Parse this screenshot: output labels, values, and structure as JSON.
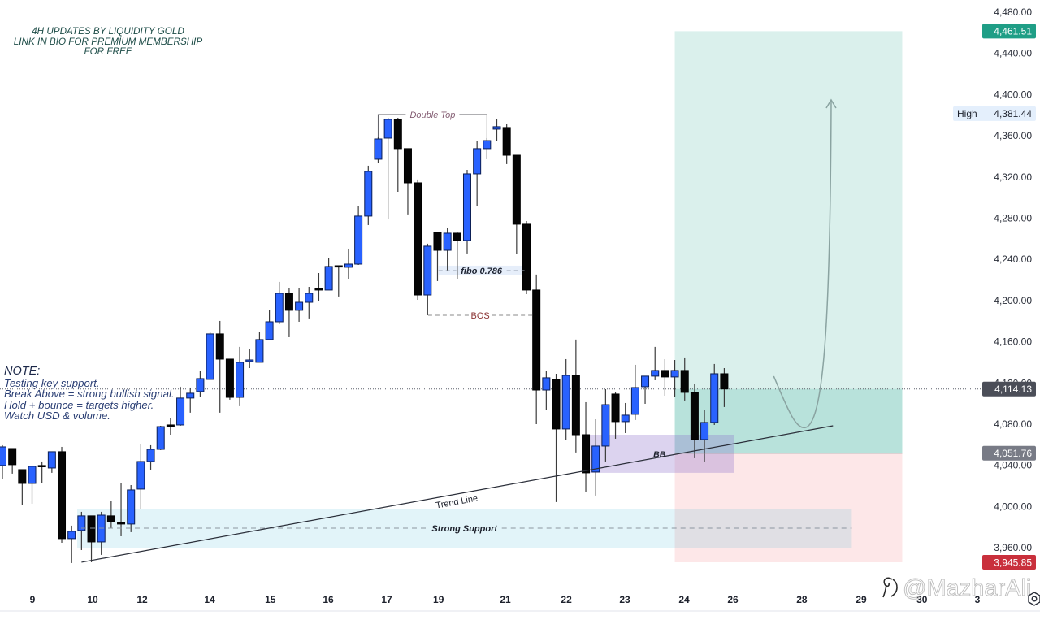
{
  "header": {
    "lines": [
      "4H UPDATES BY LIQUIDITY GOLD",
      "LINK IN BIO FOR PREMIUM MEMBERSHIP",
      "FOR FREE"
    ]
  },
  "note": {
    "title": "NOTE:",
    "lines": [
      "Testing key support.",
      "Break Above = strong bullish signal.",
      "Hold + bounce = targets higher.",
      "Watch USD & volume."
    ]
  },
  "price_axis": {
    "high_label": "High"
  },
  "watermark": {
    "text": "@MazharAli",
    "icon": "watermark-logo-icon"
  },
  "settings": {
    "icon": "settings-hexagon-icon"
  },
  "colors": {
    "bull": "#2962ff",
    "bull_border": "#0b1e55",
    "bear": "#050505",
    "wick": "#3b3b3b",
    "target_zone": "#089981",
    "stop_zone": "#f23645",
    "support_zone": "#0da3cd",
    "bb_zone": "#8a6cca",
    "target_badge": "#1f9e86",
    "current_badge": "#4b4e58",
    "entry_badge": "#787b86",
    "stop_badge": "#c9303c",
    "high_badge": "#e4effc"
  },
  "chart_data": {
    "type": "candlestick",
    "title": "4H UPDATES BY LIQUIDITY GOLD",
    "timeframe": "4H",
    "xlabel": "",
    "ylabel": "",
    "ylim": [
      3898.5,
      4491.8
    ],
    "grid": false,
    "y_ticks": [
      "4,480.00",
      "4,440.00",
      "4,400.00",
      "4,360.00",
      "4,320.00",
      "4,280.00",
      "4,240.00",
      "4,200.00",
      "4,160.00",
      "4,120.00",
      "4,080.00",
      "4,040.00",
      "4,000.00",
      "3,960.00"
    ],
    "y_tick_values": [
      4480,
      4440,
      4400,
      4360,
      4320,
      4280,
      4240,
      4200,
      4160,
      4120,
      4080,
      4040,
      4000,
      3960
    ],
    "x_ticks": [
      {
        "label": "9",
        "bar": 3.04
      },
      {
        "label": "10",
        "bar": 9.12
      },
      {
        "label": "12",
        "bar": 14.13
      },
      {
        "label": "14",
        "bar": 20.95
      },
      {
        "label": "15",
        "bar": 27.1
      },
      {
        "label": "16",
        "bar": 32.95
      },
      {
        "label": "17",
        "bar": 38.87
      },
      {
        "label": "19",
        "bar": 44.1
      },
      {
        "label": "21",
        "bar": 50.86
      },
      {
        "label": "22",
        "bar": 57.03
      },
      {
        "label": "23",
        "bar": 62.94
      },
      {
        "label": "24",
        "bar": 68.94
      },
      {
        "label": "26",
        "bar": 73.87
      },
      {
        "label": "28",
        "bar": 80.85
      },
      {
        "label": "29",
        "bar": 86.85
      },
      {
        "label": "30",
        "bar": 93.0
      },
      {
        "label": "3",
        "bar": 98.6
      }
    ],
    "candle_format": [
      "open",
      "high",
      "low",
      "close"
    ],
    "candles": [
      [
        4039.8,
        4059.5,
        4026.4,
        4057.9
      ],
      [
        4056.3,
        4056.3,
        4031.9,
        4040.6
      ],
      [
        4035.8,
        4035.8,
        4001.1,
        4022.4
      ],
      [
        4022.4,
        4039.8,
        4002.7,
        4039.0
      ],
      [
        4039.8,
        4043.7,
        4022.4,
        4039.0
      ],
      [
        4037.4,
        4053.2,
        4032.7,
        4053.2
      ],
      [
        4053.2,
        4057.9,
        3964.8,
        3968.8
      ],
      [
        3968.8,
        3981.4,
        3945.1,
        3975.9
      ],
      [
        3976.7,
        3994.8,
        3957.7,
        3990.9
      ],
      [
        3990.9,
        3990.9,
        3945.9,
        3965.6
      ],
      [
        3965.6,
        3994.8,
        3953.0,
        3991.6
      ],
      [
        3990.9,
        4005.8,
        3979.0,
        3985.3
      ],
      [
        3984.5,
        4022.4,
        3971.1,
        3983.0
      ],
      [
        3983.0,
        4020.8,
        3975.1,
        4016.1
      ],
      [
        4016.9,
        4060.3,
        3997.2,
        4043.7
      ],
      [
        4043.7,
        4059.5,
        4035.8,
        4055.5
      ],
      [
        4055.5,
        4078.4,
        4054.8,
        4077.6
      ],
      [
        4079.2,
        4085.5,
        4069.7,
        4077.6
      ],
      [
        4079.2,
        4116.3,
        4078.4,
        4105.3
      ],
      [
        4105.3,
        4115.5,
        4091.1,
        4110.0
      ],
      [
        4111.6,
        4131.3,
        4106.8,
        4124.2
      ],
      [
        4123.4,
        4169.9,
        4123.4,
        4167.6
      ],
      [
        4167.6,
        4180.2,
        4091.1,
        4143.1
      ],
      [
        4143.1,
        4143.1,
        4103.7,
        4106.0
      ],
      [
        4106.0,
        4155.0,
        4097.4,
        4140.0
      ],
      [
        4140.8,
        4152.6,
        4134.4,
        4142.3
      ],
      [
        4140.0,
        4169.9,
        4140.0,
        4162.1
      ],
      [
        4162.1,
        4190.5,
        4162.1,
        4179.4
      ],
      [
        4179.4,
        4218.1,
        4177.0,
        4207.0
      ],
      [
        4207.0,
        4211.8,
        4164.4,
        4190.5
      ],
      [
        4190.5,
        4212.5,
        4179.4,
        4198.3
      ],
      [
        4198.3,
        4213.3,
        4182.6,
        4207.0
      ],
      [
        4211.8,
        4226.7,
        4199.9,
        4210.2
      ],
      [
        4210.2,
        4241.7,
        4210.2,
        4233.1
      ],
      [
        4233.8,
        4233.8,
        4203.9,
        4233.1
      ],
      [
        4232.3,
        4250.4,
        4221.2,
        4235.4
      ],
      [
        4235.4,
        4292.2,
        4234.6,
        4282.0
      ],
      [
        4282.0,
        4330.9,
        4273.3,
        4325.4
      ],
      [
        4337.2,
        4359.3,
        4333.3,
        4356.9
      ],
      [
        4357.7,
        4377.4,
        4278.8,
        4375.9
      ],
      [
        4375.9,
        4377.4,
        4305.6,
        4347.5
      ],
      [
        4347.5,
        4347.5,
        4283.6,
        4314.3
      ],
      [
        4314.3,
        4317.5,
        4200.7,
        4205.4
      ],
      [
        4205.4,
        4255.2,
        4185.7,
        4252.8
      ],
      [
        4266.2,
        4266.2,
        4218.9,
        4248.8
      ],
      [
        4248.8,
        4270.9,
        4229.1,
        4265.4
      ],
      [
        4265.4,
        4266.2,
        4221.2,
        4258.3
      ],
      [
        4258.3,
        4326.9,
        4245.7,
        4323.0
      ],
      [
        4323.0,
        4355.3,
        4292.2,
        4347.5
      ],
      [
        4347.5,
        4357.7,
        4337.2,
        4355.3
      ],
      [
        4366.4,
        4375.9,
        4355.3,
        4368.8
      ],
      [
        4368.0,
        4371.1,
        4332.5,
        4341.1
      ],
      [
        4341.1,
        4341.1,
        4244.9,
        4274.1
      ],
      [
        4274.1,
        4277.2,
        4206.2,
        4210.2
      ],
      [
        4210.2,
        4225.2,
        4080.0,
        4113.1
      ],
      [
        4113.1,
        4131.3,
        4093.4,
        4125.0
      ],
      [
        4123.4,
        4128.9,
        4004.3,
        4075.3
      ],
      [
        4075.3,
        4143.1,
        4064.2,
        4127.3
      ],
      [
        4127.3,
        4162.1,
        4052.4,
        4069.7
      ],
      [
        4069.7,
        4101.3,
        4014.5,
        4032.7
      ],
      [
        4033.5,
        4084.7,
        4010.6,
        4058.7
      ],
      [
        4058.7,
        4113.9,
        4043.7,
        4098.9
      ],
      [
        4109.2,
        4110.8,
        4065.8,
        4082.4
      ],
      [
        4082.4,
        4100.5,
        4071.3,
        4088.7
      ],
      [
        4089.5,
        4137.6,
        4084.0,
        4115.5
      ],
      [
        4116.3,
        4126.6,
        4099.7,
        4126.6
      ],
      [
        4126.6,
        4155.0,
        4122.6,
        4132.1
      ],
      [
        4132.1,
        4143.1,
        4107.6,
        4125.8
      ],
      [
        4125.8,
        4142.3,
        4106.0,
        4132.1
      ],
      [
        4132.1,
        4144.7,
        4102.9,
        4110.8
      ],
      [
        4110.8,
        4118.7,
        4046.9,
        4065.0
      ],
      [
        4065.0,
        4093.4,
        4043.7,
        4081.6
      ],
      [
        4081.6,
        4138.4,
        4079.2,
        4128.9
      ],
      [
        4128.9,
        4134.4,
        4096.6,
        4114.13
      ]
    ],
    "price_labels": {
      "target": "4,461.51",
      "high": "4,381.44",
      "current": "4,114.13",
      "entry": "4,051.76",
      "stop": "3,945.85"
    },
    "high_value": 4381.44,
    "position": {
      "type": "long",
      "bar_from": 68,
      "bar_to": 91,
      "target": 4461.51,
      "entry": 4051.76,
      "stop": 3945.85,
      "current": 4114.13
    },
    "annotations": {
      "double_top": {
        "label": "Double Top",
        "bar_from": 38,
        "bar_to": 49,
        "price": 4380.6
      },
      "fibo": {
        "label": "fibo 0.786",
        "bar_from": 44.1,
        "bar_to": 52.8,
        "price": 4229.1
      },
      "bos": {
        "label": "BOS",
        "bar_from": 43.05,
        "bar_to": 53.6,
        "price": 4185.7
      },
      "bb_zone": {
        "label": "BB",
        "bar_from": 58.9,
        "bar_to": 74.0,
        "top": 4069.7,
        "bottom": 4032.7
      },
      "support_zone": {
        "label": "Strong Support",
        "bar_from": 7.56,
        "bar_to": 85.9,
        "top": 3997.2,
        "bottom": 3960.0,
        "level": 3979.0
      },
      "trend_line": {
        "label": "Trend Line",
        "from": {
          "bar": 8.0,
          "price": 3945.9
        },
        "to": {
          "bar": 84.0,
          "price": 4078.4
        }
      },
      "projection": {
        "points": [
          [
            78.0,
            4126.6
          ],
          [
            79.46,
            4093.4
          ],
          [
            80.28,
            4073.7
          ],
          [
            81.27,
            4076.9
          ],
          [
            83.15,
            4083.2
          ],
          [
            83.73,
            4192.0
          ],
          [
            83.81,
            4394.0
          ]
        ]
      }
    }
  }
}
